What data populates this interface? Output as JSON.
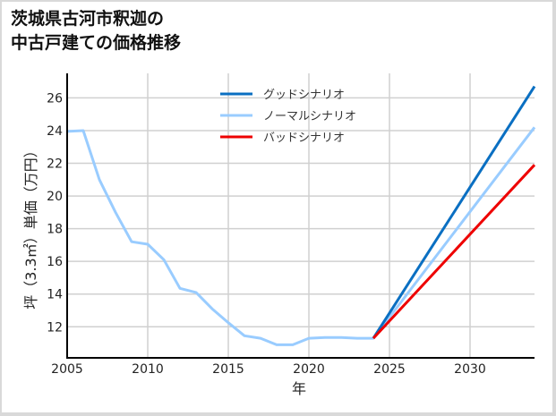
{
  "title_line1": "茨城県古河市釈迦の",
  "title_line2": "中古戸建ての価格推移",
  "chart_data": {
    "type": "line",
    "title": "茨城県古河市釈迦の中古戸建ての価格推移",
    "xlabel": "年",
    "ylabel": "坪（3.3㎡）単価（万円）",
    "xlim": [
      2005,
      2034
    ],
    "ylim": [
      10.1,
      27.5
    ],
    "xticks": [
      2005,
      2010,
      2015,
      2020,
      2025,
      2030
    ],
    "yticks": [
      12,
      14,
      16,
      18,
      20,
      22,
      24,
      26
    ],
    "grid": true,
    "legend_position": "upper center",
    "series": [
      {
        "name": "グッドシナリオ",
        "color": "#0a6fc2",
        "x": [
          2024,
          2034
        ],
        "y": [
          11.3,
          26.7
        ]
      },
      {
        "name": "ノーマルシナリオ",
        "color": "#99ccff",
        "x": [
          2005,
          2006,
          2007,
          2008,
          2009,
          2010,
          2011,
          2012,
          2013,
          2014,
          2015,
          2016,
          2017,
          2018,
          2019,
          2020,
          2021,
          2022,
          2023,
          2024,
          2034
        ],
        "y": [
          23.95,
          24.0,
          21.0,
          19.0,
          17.2,
          17.05,
          16.1,
          14.35,
          14.1,
          13.1,
          12.25,
          11.45,
          11.3,
          10.9,
          10.9,
          11.3,
          11.35,
          11.35,
          11.3,
          11.3,
          24.2
        ]
      },
      {
        "name": "バッドシナリオ",
        "color": "#ee0000",
        "x": [
          2024,
          2034
        ],
        "y": [
          11.3,
          21.9
        ]
      }
    ]
  }
}
